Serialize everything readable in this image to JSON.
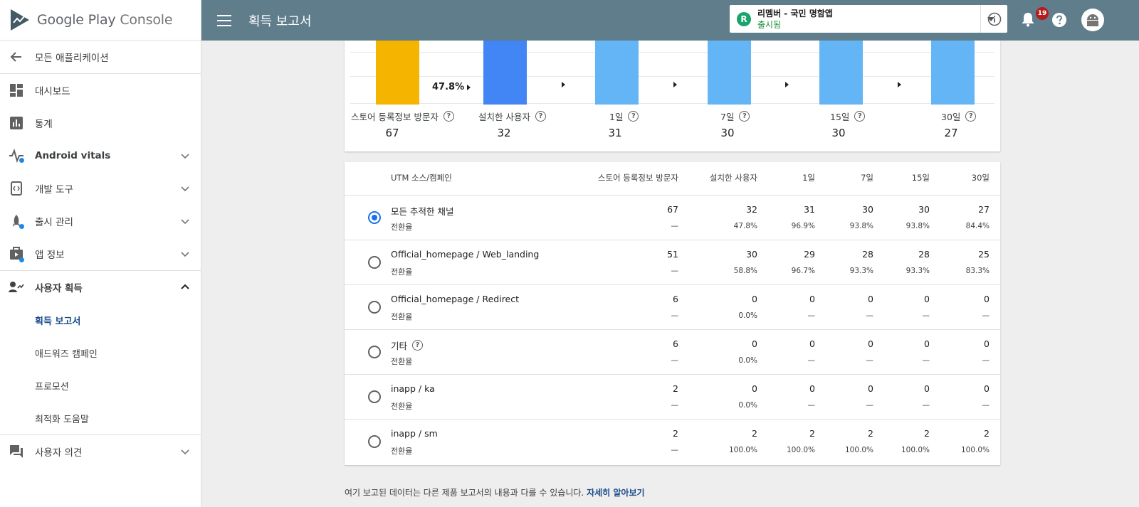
{
  "brand": {
    "name": "Google Play",
    "suffix": "Console"
  },
  "sidebar": {
    "back_label": "모든 애플리케이션",
    "items": [
      {
        "label": "대시보드",
        "icon": "dashboard-icon"
      },
      {
        "label": "통계",
        "icon": "stats-icon"
      },
      {
        "label": "Android vitals",
        "icon": "vitals-icon"
      },
      {
        "label": "개발 도구",
        "icon": "dev-tools-icon"
      },
      {
        "label": "출시 관리",
        "icon": "rocket-icon"
      },
      {
        "label": "앱 정보",
        "icon": "store-presence-icon"
      },
      {
        "label": "사용자 획득",
        "icon": "user-acquisition-icon"
      }
    ],
    "sub_items": [
      "획득 보고서",
      "애드워즈 캠페인",
      "프로모션",
      "최적화 도움말"
    ],
    "feedback_label": "사용자 의견"
  },
  "topbar": {
    "title": "획득 보고서",
    "app_badge_letter": "R",
    "app_name": "리멤버 - 국민 명함앱",
    "app_status": "출시됨",
    "notifications_count": "19"
  },
  "funnel": {
    "conversion_label": "47.8%",
    "stages": [
      {
        "label": "스토어 등록정보 방문자",
        "value": "67",
        "color": "#f4b400"
      },
      {
        "label": "설치한 사용자",
        "value": "32",
        "color": "#4285f4"
      },
      {
        "label": "1일",
        "value": "31",
        "color": "#64b5f6"
      },
      {
        "label": "7일",
        "value": "30",
        "color": "#64b5f6"
      },
      {
        "label": "15일",
        "value": "30",
        "color": "#64b5f6"
      },
      {
        "label": "30일",
        "value": "27",
        "color": "#64b5f6"
      }
    ]
  },
  "table": {
    "headers": [
      "UTM 소스/캠페인",
      "스토어 등록정보 방문자",
      "설치한 사용자",
      "1일",
      "7일",
      "15일",
      "30일"
    ],
    "sub_label": "전환율",
    "rows": [
      {
        "name": "모든 추적한 채널",
        "selected": true,
        "values": [
          "67",
          "32",
          "31",
          "30",
          "30",
          "27"
        ],
        "rates": [
          "—",
          "47.8%",
          "96.9%",
          "93.8%",
          "93.8%",
          "84.4%"
        ]
      },
      {
        "name": "Official_homepage / Web_landing",
        "values": [
          "51",
          "30",
          "29",
          "28",
          "28",
          "25"
        ],
        "rates": [
          "—",
          "58.8%",
          "96.7%",
          "93.3%",
          "93.3%",
          "83.3%"
        ]
      },
      {
        "name": "Official_homepage / Redirect",
        "values": [
          "6",
          "0",
          "0",
          "0",
          "0",
          "0"
        ],
        "rates": [
          "—",
          "0.0%",
          "—",
          "—",
          "—",
          "—"
        ]
      },
      {
        "name": "기타",
        "help": true,
        "values": [
          "6",
          "0",
          "0",
          "0",
          "0",
          "0"
        ],
        "rates": [
          "—",
          "0.0%",
          "—",
          "—",
          "—",
          "—"
        ]
      },
      {
        "name": "inapp / ka",
        "values": [
          "2",
          "0",
          "0",
          "0",
          "0",
          "0"
        ],
        "rates": [
          "—",
          "0.0%",
          "—",
          "—",
          "—",
          "—"
        ]
      },
      {
        "name": "inapp / sm",
        "values": [
          "2",
          "2",
          "2",
          "2",
          "2",
          "2"
        ],
        "rates": [
          "—",
          "100.0%",
          "100.0%",
          "100.0%",
          "100.0%",
          "100.0%"
        ]
      }
    ]
  },
  "footer": {
    "note": "여기 보고된 데이터는 다른 제품 보고서의 내용과 다를 수 있습니다.",
    "link": "자세히 알아보기"
  }
}
